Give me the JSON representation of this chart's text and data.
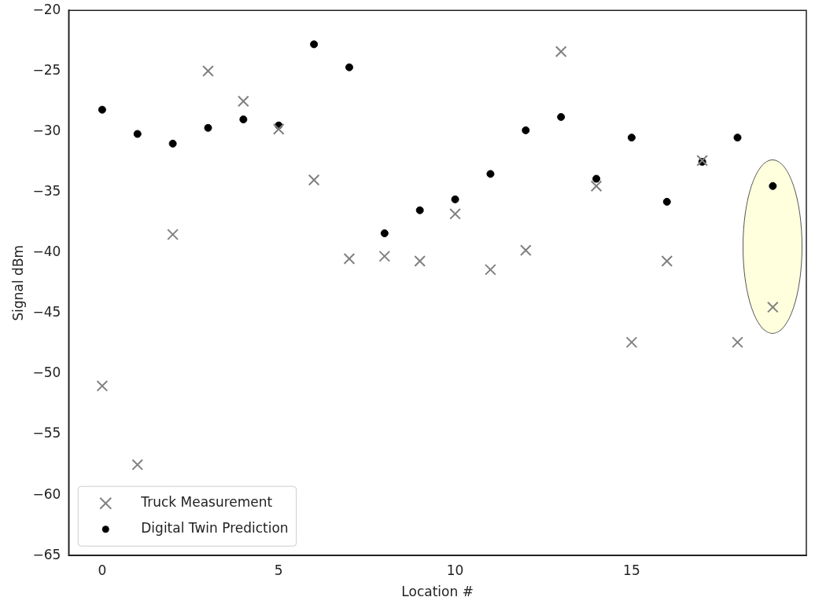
{
  "chart_data": {
    "type": "scatter",
    "xlabel": "Location #",
    "ylabel": "Signal dBm",
    "x": [
      0,
      1,
      2,
      3,
      4,
      5,
      6,
      7,
      8,
      9,
      10,
      11,
      12,
      13,
      14,
      15,
      16,
      17,
      18,
      19
    ],
    "series": [
      {
        "name": "Truck Measurement",
        "color": "#808080",
        "marker": "cross",
        "values": [
          -51.0,
          -57.5,
          -38.5,
          -25.0,
          -27.5,
          -29.8,
          -34.0,
          -40.5,
          -40.3,
          -40.7,
          -36.8,
          -41.4,
          -39.8,
          -23.4,
          -34.5,
          -47.4,
          -40.7,
          -32.4,
          -47.4,
          -44.5
        ]
      },
      {
        "name": "Digital Twin Prediction",
        "color": "#000000",
        "marker": "circle",
        "values": [
          -28.2,
          -30.2,
          -31.0,
          -29.7,
          -29.0,
          -29.5,
          -22.8,
          -24.7,
          -38.4,
          -36.5,
          -35.6,
          -33.5,
          -29.9,
          -28.8,
          -33.9,
          -30.5,
          -35.8,
          -32.5,
          -30.5,
          -34.5
        ]
      }
    ],
    "xlim": [
      -0.95,
      19.95
    ],
    "xticks": [
      0,
      5,
      10,
      15
    ],
    "ylim": [
      -65,
      -20
    ],
    "yticks": [
      -20,
      -25,
      -30,
      -35,
      -40,
      -45,
      -50,
      -55,
      -60,
      -65
    ],
    "legend": "bottom left",
    "grid": false
  }
}
